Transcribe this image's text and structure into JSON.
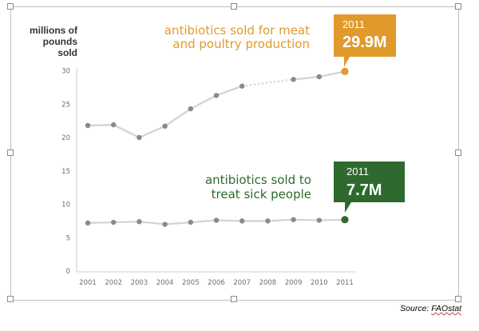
{
  "chart_data": {
    "type": "line",
    "ylabel_lines": [
      "millions of",
      "pounds",
      "sold"
    ],
    "x": [
      "2001",
      "2002",
      "2003",
      "2004",
      "2005",
      "2006",
      "2007",
      "2008",
      "2009",
      "2010",
      "2011"
    ],
    "ylim": [
      0,
      30
    ],
    "yticks": [
      "0",
      "5",
      "10",
      "15",
      "20",
      "25",
      "30"
    ],
    "grid": false,
    "series": [
      {
        "label_lines": [
          "antibiotics sold for meat",
          "and poultry production"
        ],
        "values": [
          21.8,
          21.9,
          20.0,
          21.7,
          24.3,
          26.3,
          27.7,
          null,
          28.7,
          29.1,
          29.9
        ],
        "callout": {
          "year": "2011",
          "value": "29.9M"
        },
        "color": "#e09a2c",
        "line_color": "#d2d2d2",
        "marker_color": "#8a8a8a"
      },
      {
        "label_lines": [
          "antibiotics sold to",
          "treat sick people"
        ],
        "values": [
          7.2,
          7.3,
          7.4,
          7.0,
          7.3,
          7.6,
          7.5,
          7.5,
          7.7,
          7.6,
          7.7
        ],
        "callout": {
          "year": "2011",
          "value": "7.7M"
        },
        "color": "#2e6a2e",
        "line_color": "#d2d2d2",
        "marker_color": "#8a8a8a"
      }
    ]
  },
  "source": {
    "prefix": "Source: ",
    "name": "FAOstat"
  },
  "colors": {
    "axis": "#e6e6e6",
    "frame_border": "#bfbfbf"
  }
}
